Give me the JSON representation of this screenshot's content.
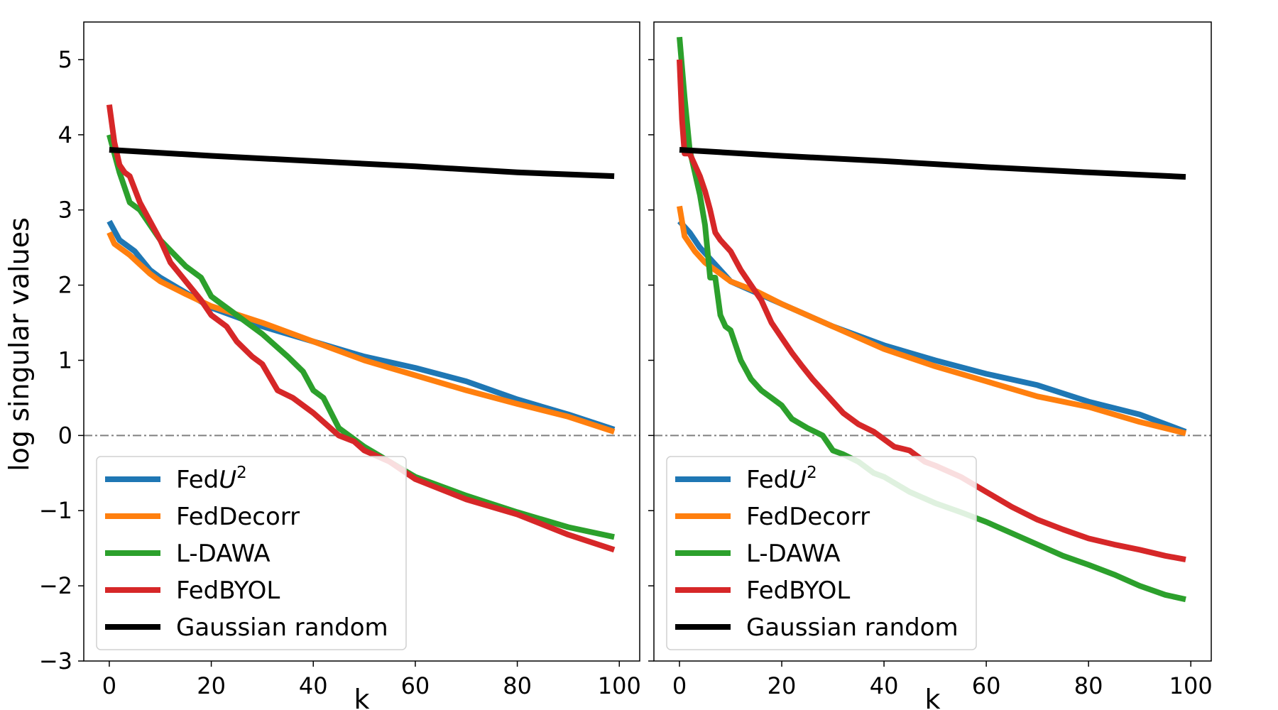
{
  "chart_data": {
    "type": "line",
    "ylabel": "log singular values",
    "colors": {
      "FedU2": "#1f77b4",
      "FedDecorr": "#ff7f0e",
      "L-DAWA": "#2ca02c",
      "FedBYOL": "#d62728",
      "Gaussian random": "#000000",
      "reference_line": "#808080"
    },
    "legend_entries": [
      {
        "key": "FedU2",
        "prefix": "Fed",
        "italic": "U",
        "sup": "2"
      },
      {
        "key": "FedDecorr",
        "label": "FedDecorr"
      },
      {
        "key": "L-DAWA",
        "label": "L-DAWA"
      },
      {
        "key": "FedBYOL",
        "label": "FedBYOL"
      },
      {
        "key": "Gaussian random",
        "label": "Gaussian random"
      }
    ],
    "panels": [
      {
        "xlabel": "k",
        "xlim": [
          -5,
          104
        ],
        "ylim": [
          -3,
          5.5
        ],
        "xticks": [
          0,
          20,
          40,
          60,
          80,
          100
        ],
        "xtick_labels": [
          "0",
          "20",
          "40",
          "60",
          "80",
          "100"
        ],
        "yticks": [
          -3,
          -2,
          -1,
          0,
          1,
          2,
          3,
          4,
          5
        ],
        "ytick_labels": [
          "−3",
          "−2",
          "−1",
          "0",
          "1",
          "2",
          "3",
          "4",
          "5"
        ],
        "reference_y": 0,
        "legend_position": "lower-left",
        "series": [
          {
            "name": "FedU2",
            "points": [
              [
                0,
                2.85
              ],
              [
                2,
                2.6
              ],
              [
                5,
                2.45
              ],
              [
                8,
                2.2
              ],
              [
                10,
                2.1
              ],
              [
                15,
                1.9
              ],
              [
                20,
                1.7
              ],
              [
                30,
                1.45
              ],
              [
                40,
                1.25
              ],
              [
                50,
                1.05
              ],
              [
                60,
                0.9
              ],
              [
                70,
                0.72
              ],
              [
                80,
                0.48
              ],
              [
                90,
                0.28
              ],
              [
                99,
                0.08
              ]
            ]
          },
          {
            "name": "FedDecorr",
            "points": [
              [
                0,
                2.7
              ],
              [
                1,
                2.55
              ],
              [
                4,
                2.4
              ],
              [
                8,
                2.15
              ],
              [
                10,
                2.05
              ],
              [
                15,
                1.88
              ],
              [
                20,
                1.72
              ],
              [
                30,
                1.5
              ],
              [
                40,
                1.25
              ],
              [
                50,
                1.0
              ],
              [
                60,
                0.8
              ],
              [
                70,
                0.6
              ],
              [
                80,
                0.42
              ],
              [
                90,
                0.25
              ],
              [
                99,
                0.05
              ]
            ]
          },
          {
            "name": "L-DAWA",
            "points": [
              [
                0,
                4.0
              ],
              [
                2,
                3.5
              ],
              [
                4,
                3.1
              ],
              [
                6,
                3.0
              ],
              [
                10,
                2.6
              ],
              [
                15,
                2.25
              ],
              [
                18,
                2.1
              ],
              [
                20,
                1.85
              ],
              [
                22,
                1.75
              ],
              [
                25,
                1.6
              ],
              [
                30,
                1.35
              ],
              [
                35,
                1.05
              ],
              [
                38,
                0.85
              ],
              [
                40,
                0.6
              ],
              [
                42,
                0.5
              ],
              [
                45,
                0.1
              ],
              [
                48,
                -0.05
              ],
              [
                50,
                -0.15
              ],
              [
                55,
                -0.35
              ],
              [
                60,
                -0.55
              ],
              [
                70,
                -0.8
              ],
              [
                80,
                -1.02
              ],
              [
                90,
                -1.22
              ],
              [
                99,
                -1.35
              ]
            ]
          },
          {
            "name": "FedBYOL",
            "points": [
              [
                0,
                4.4
              ],
              [
                1,
                3.9
              ],
              [
                2,
                3.6
              ],
              [
                3,
                3.5
              ],
              [
                4,
                3.45
              ],
              [
                6,
                3.1
              ],
              [
                8,
                2.85
              ],
              [
                10,
                2.6
              ],
              [
                12,
                2.3
              ],
              [
                15,
                2.05
              ],
              [
                18,
                1.8
              ],
              [
                20,
                1.6
              ],
              [
                23,
                1.45
              ],
              [
                25,
                1.25
              ],
              [
                28,
                1.05
              ],
              [
                30,
                0.95
              ],
              [
                33,
                0.6
              ],
              [
                36,
                0.5
              ],
              [
                40,
                0.3
              ],
              [
                43,
                0.12
              ],
              [
                45,
                0.0
              ],
              [
                48,
                -0.08
              ],
              [
                50,
                -0.2
              ],
              [
                55,
                -0.35
              ],
              [
                60,
                -0.58
              ],
              [
                70,
                -0.85
              ],
              [
                80,
                -1.05
              ],
              [
                90,
                -1.32
              ],
              [
                99,
                -1.52
              ]
            ]
          },
          {
            "name": "Gaussian random",
            "points": [
              [
                0,
                3.8
              ],
              [
                20,
                3.72
              ],
              [
                40,
                3.65
              ],
              [
                60,
                3.58
              ],
              [
                80,
                3.5
              ],
              [
                99,
                3.45
              ]
            ]
          }
        ]
      },
      {
        "xlabel": "k",
        "xlim": [
          -5,
          104
        ],
        "ylim": [
          -3,
          5.5
        ],
        "xticks": [
          0,
          20,
          40,
          60,
          80,
          100
        ],
        "xtick_labels": [
          "0",
          "20",
          "40",
          "60",
          "80",
          "100"
        ],
        "yticks": [
          -3,
          -2,
          -1,
          0,
          1,
          2,
          3,
          4,
          5
        ],
        "ytick_labels": [
          "",
          "",
          "",
          "",
          "",
          "",
          "",
          "",
          ""
        ],
        "reference_y": 0,
        "legend_position": "lower-left",
        "series": [
          {
            "name": "FedU2",
            "points": [
              [
                0,
                2.85
              ],
              [
                2,
                2.7
              ],
              [
                4,
                2.5
              ],
              [
                6,
                2.35
              ],
              [
                8,
                2.2
              ],
              [
                10,
                2.05
              ],
              [
                15,
                1.9
              ],
              [
                20,
                1.75
              ],
              [
                30,
                1.45
              ],
              [
                40,
                1.2
              ],
              [
                50,
                1.0
              ],
              [
                60,
                0.82
              ],
              [
                70,
                0.67
              ],
              [
                80,
                0.45
              ],
              [
                90,
                0.28
              ],
              [
                99,
                0.05
              ]
            ]
          },
          {
            "name": "FedDecorr",
            "points": [
              [
                0,
                3.05
              ],
              [
                1,
                2.65
              ],
              [
                3,
                2.45
              ],
              [
                5,
                2.3
              ],
              [
                8,
                2.15
              ],
              [
                10,
                2.05
              ],
              [
                15,
                1.92
              ],
              [
                20,
                1.75
              ],
              [
                30,
                1.45
              ],
              [
                40,
                1.15
              ],
              [
                50,
                0.92
              ],
              [
                60,
                0.72
              ],
              [
                70,
                0.52
              ],
              [
                80,
                0.38
              ],
              [
                90,
                0.18
              ],
              [
                99,
                0.03
              ]
            ]
          },
          {
            "name": "L-DAWA",
            "points": [
              [
                0,
                5.3
              ],
              [
                1,
                4.5
              ],
              [
                2,
                3.8
              ],
              [
                3,
                3.5
              ],
              [
                4,
                3.2
              ],
              [
                5,
                2.8
              ],
              [
                6,
                2.1
              ],
              [
                7,
                2.1
              ],
              [
                8,
                1.6
              ],
              [
                9,
                1.45
              ],
              [
                10,
                1.4
              ],
              [
                12,
                1.0
              ],
              [
                14,
                0.75
              ],
              [
                16,
                0.6
              ],
              [
                18,
                0.5
              ],
              [
                20,
                0.4
              ],
              [
                22,
                0.22
              ],
              [
                25,
                0.1
              ],
              [
                28,
                0.0
              ],
              [
                30,
                -0.2
              ],
              [
                32,
                -0.25
              ],
              [
                35,
                -0.35
              ],
              [
                38,
                -0.5
              ],
              [
                40,
                -0.55
              ],
              [
                45,
                -0.75
              ],
              [
                50,
                -0.9
              ],
              [
                55,
                -1.02
              ],
              [
                60,
                -1.15
              ],
              [
                65,
                -1.3
              ],
              [
                70,
                -1.45
              ],
              [
                75,
                -1.6
              ],
              [
                80,
                -1.72
              ],
              [
                85,
                -1.85
              ],
              [
                90,
                -2.0
              ],
              [
                95,
                -2.12
              ],
              [
                99,
                -2.18
              ]
            ]
          },
          {
            "name": "FedBYOL",
            "points": [
              [
                0,
                5.0
              ],
              [
                0.5,
                4.2
              ],
              [
                1,
                3.75
              ],
              [
                2,
                3.75
              ],
              [
                3,
                3.6
              ],
              [
                4,
                3.45
              ],
              [
                5,
                3.25
              ],
              [
                6,
                3.0
              ],
              [
                7,
                2.7
              ],
              [
                8,
                2.6
              ],
              [
                10,
                2.45
              ],
              [
                12,
                2.2
              ],
              [
                14,
                2.0
              ],
              [
                16,
                1.8
              ],
              [
                18,
                1.5
              ],
              [
                20,
                1.3
              ],
              [
                22,
                1.1
              ],
              [
                24,
                0.92
              ],
              [
                26,
                0.75
              ],
              [
                28,
                0.6
              ],
              [
                30,
                0.45
              ],
              [
                32,
                0.3
              ],
              [
                35,
                0.15
              ],
              [
                38,
                0.05
              ],
              [
                40,
                -0.05
              ],
              [
                42,
                -0.15
              ],
              [
                45,
                -0.2
              ],
              [
                48,
                -0.35
              ],
              [
                50,
                -0.4
              ],
              [
                55,
                -0.55
              ],
              [
                60,
                -0.75
              ],
              [
                65,
                -0.95
              ],
              [
                70,
                -1.12
              ],
              [
                75,
                -1.25
              ],
              [
                80,
                -1.37
              ],
              [
                85,
                -1.45
              ],
              [
                90,
                -1.52
              ],
              [
                95,
                -1.6
              ],
              [
                99,
                -1.65
              ]
            ]
          },
          {
            "name": "Gaussian random",
            "points": [
              [
                0,
                3.8
              ],
              [
                20,
                3.72
              ],
              [
                40,
                3.65
              ],
              [
                60,
                3.57
              ],
              [
                80,
                3.5
              ],
              [
                99,
                3.44
              ]
            ]
          }
        ]
      }
    ]
  }
}
